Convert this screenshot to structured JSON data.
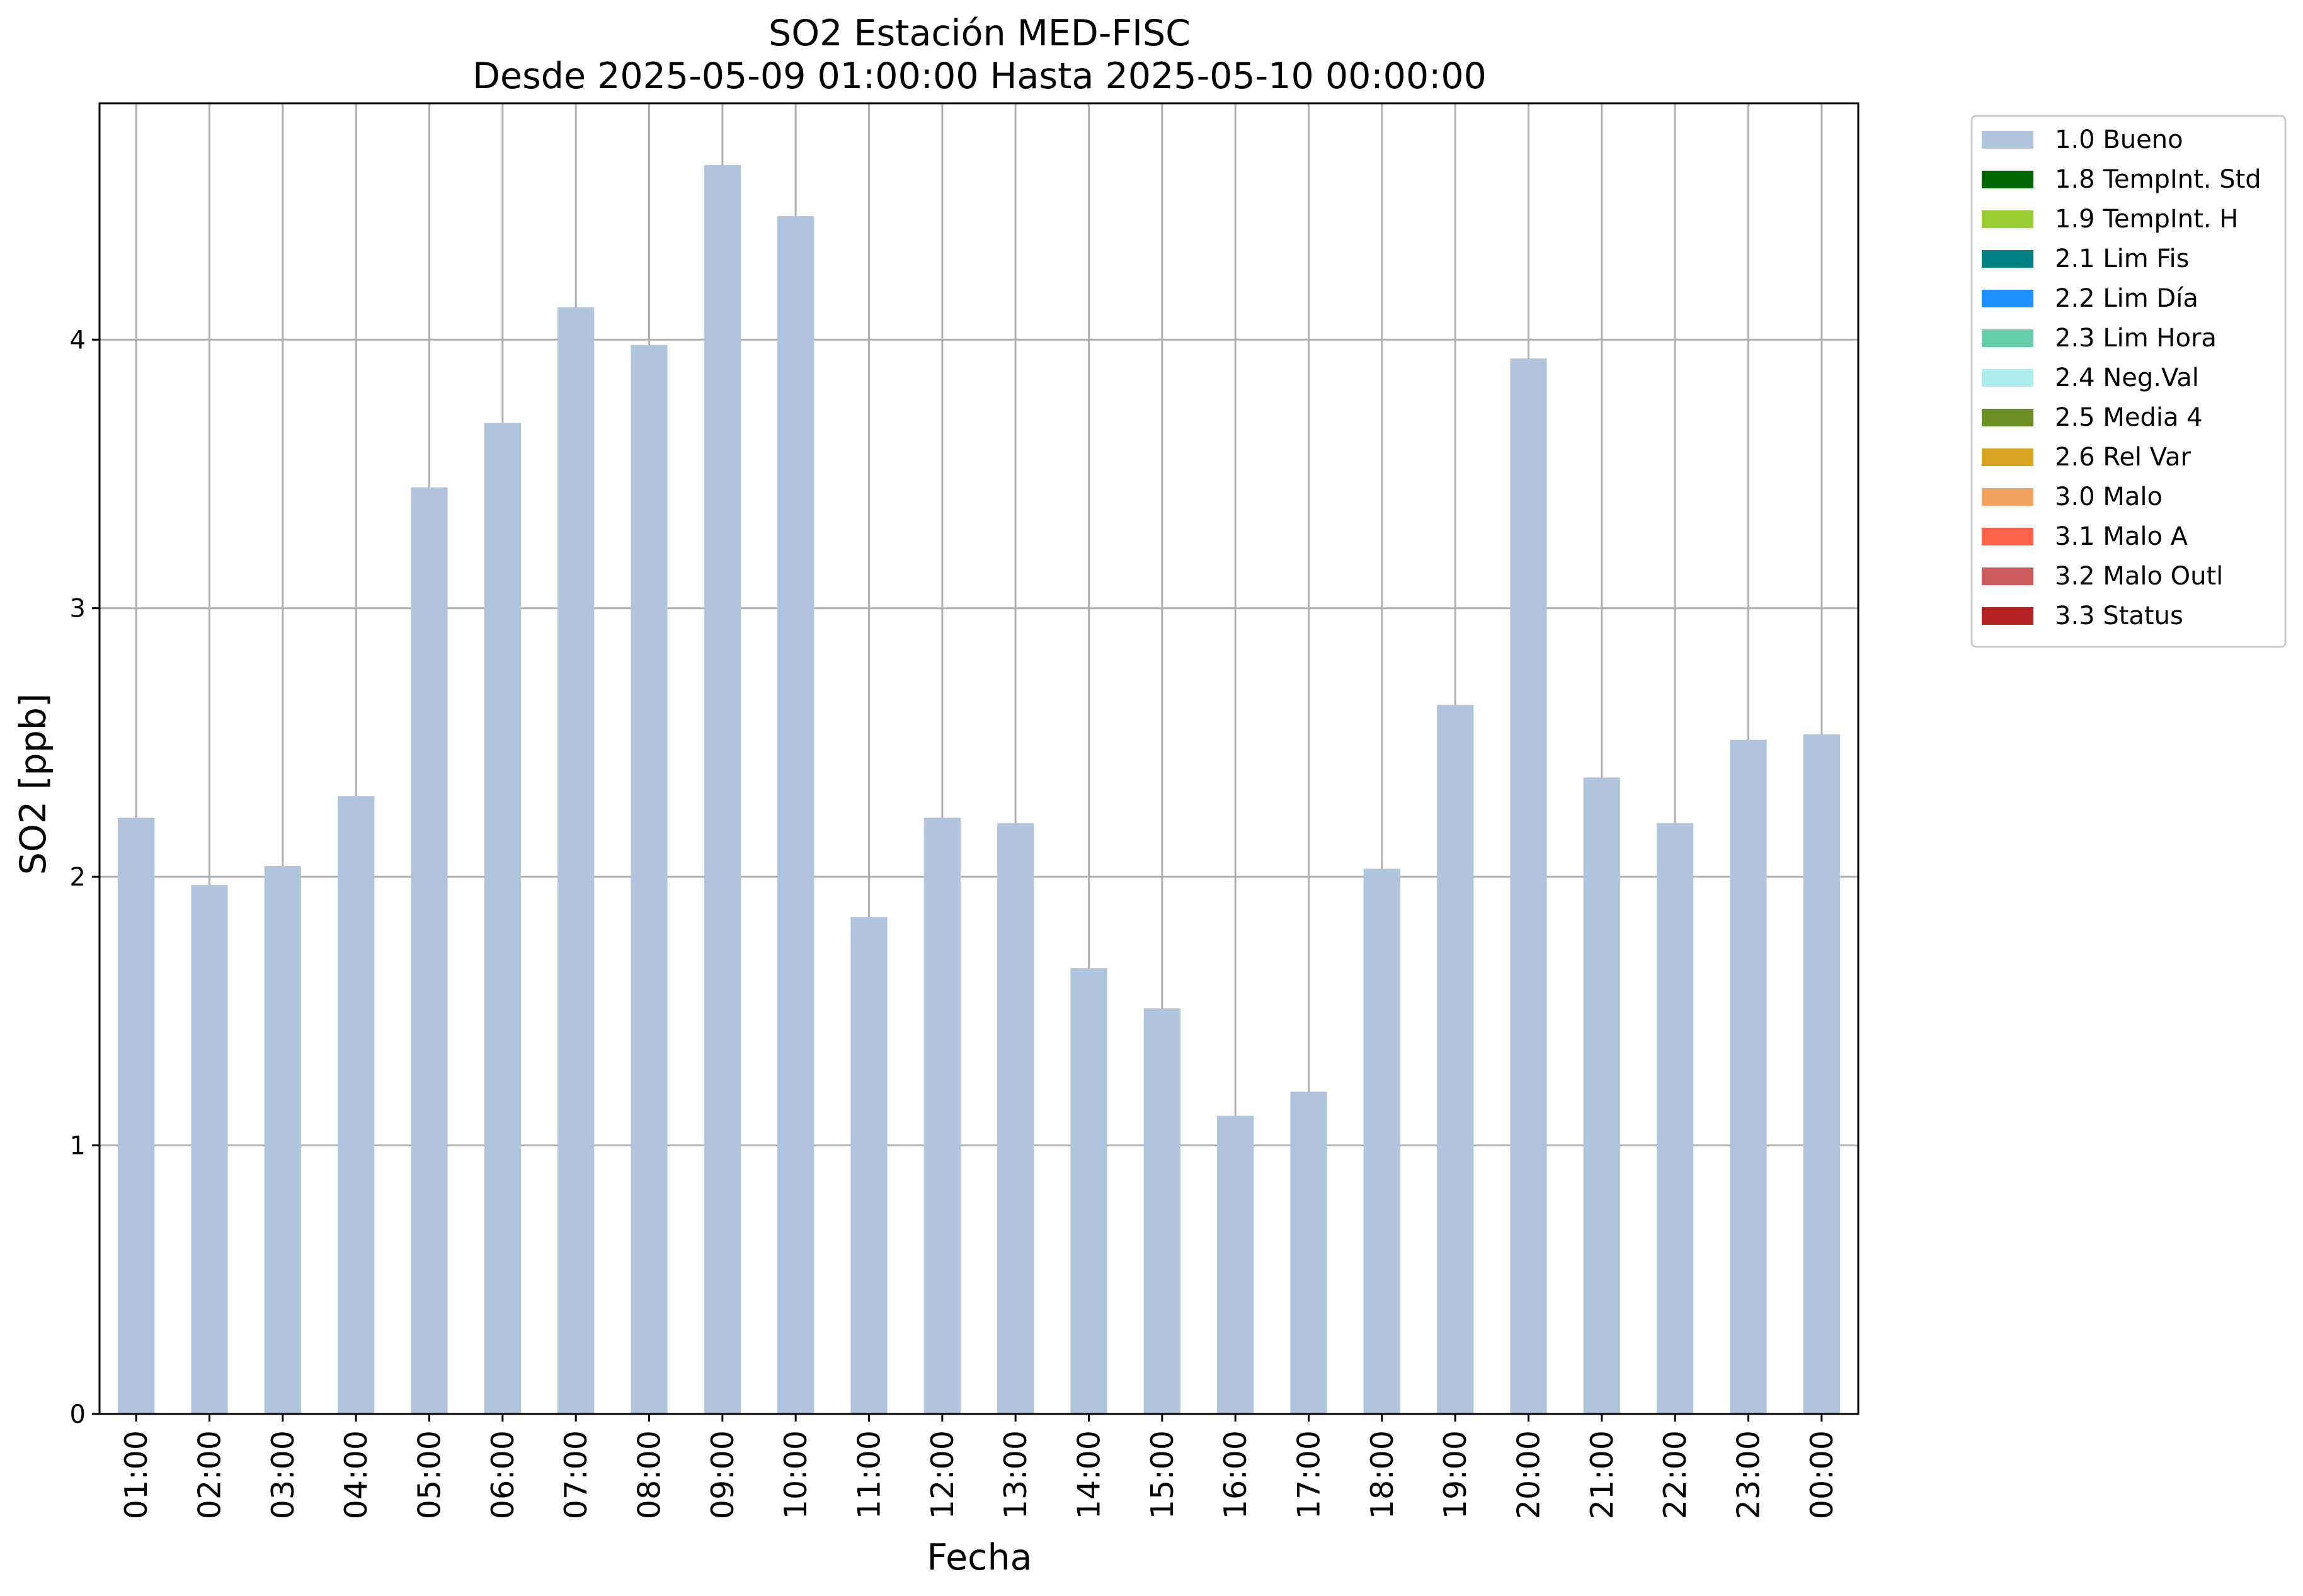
{
  "chart_data": {
    "type": "bar",
    "title": "SO2 Estación MED-FISC",
    "subtitle": "Desde 2025-05-09 01:00:00 Hasta 2025-05-10 00:00:00",
    "xlabel": "Fecha",
    "ylabel": "SO2 [ppb]",
    "ylim": [
      0,
      4.88
    ],
    "yticks": [
      "0",
      "1",
      "2",
      "3",
      "4"
    ],
    "grid": true,
    "legend_position": "outside-top-right",
    "categories": [
      "01:00",
      "02:00",
      "03:00",
      "04:00",
      "05:00",
      "06:00",
      "07:00",
      "08:00",
      "09:00",
      "10:00",
      "11:00",
      "12:00",
      "13:00",
      "14:00",
      "15:00",
      "16:00",
      "17:00",
      "18:00",
      "19:00",
      "20:00",
      "21:00",
      "22:00",
      "23:00",
      "00:00"
    ],
    "series": [
      {
        "name": "1.0 Bueno",
        "color": "#b0c4de",
        "values": [
          2.22,
          1.97,
          2.04,
          2.3,
          3.45,
          3.69,
          4.12,
          3.98,
          4.65,
          4.46,
          1.85,
          2.22,
          2.2,
          1.66,
          1.51,
          1.11,
          1.2,
          2.03,
          2.64,
          3.93,
          2.37,
          2.2,
          2.51,
          2.53
        ]
      }
    ],
    "legend": [
      {
        "label": "1.0 Bueno",
        "color": "#b0c4de"
      },
      {
        "label": "1.8 TempInt. Std",
        "color": "#006400"
      },
      {
        "label": "1.9 TempInt. H",
        "color": "#9acd32"
      },
      {
        "label": "2.1 Lim Fis",
        "color": "#008080"
      },
      {
        "label": "2.2 Lim Día",
        "color": "#1e90ff"
      },
      {
        "label": "2.3 Lim Hora",
        "color": "#66cdaa"
      },
      {
        "label": "2.4 Neg.Val",
        "color": "#afeeee"
      },
      {
        "label": "2.5 Media 4",
        "color": "#6b8e23"
      },
      {
        "label": "2.6 Rel Var",
        "color": "#daa520"
      },
      {
        "label": "3.0 Malo",
        "color": "#f4a460"
      },
      {
        "label": "3.1 Malo A",
        "color": "#ff6347"
      },
      {
        "label": "3.2 Malo Outl",
        "color": "#cd5c5c"
      },
      {
        "label": "3.3 Status",
        "color": "#b22222"
      }
    ]
  }
}
